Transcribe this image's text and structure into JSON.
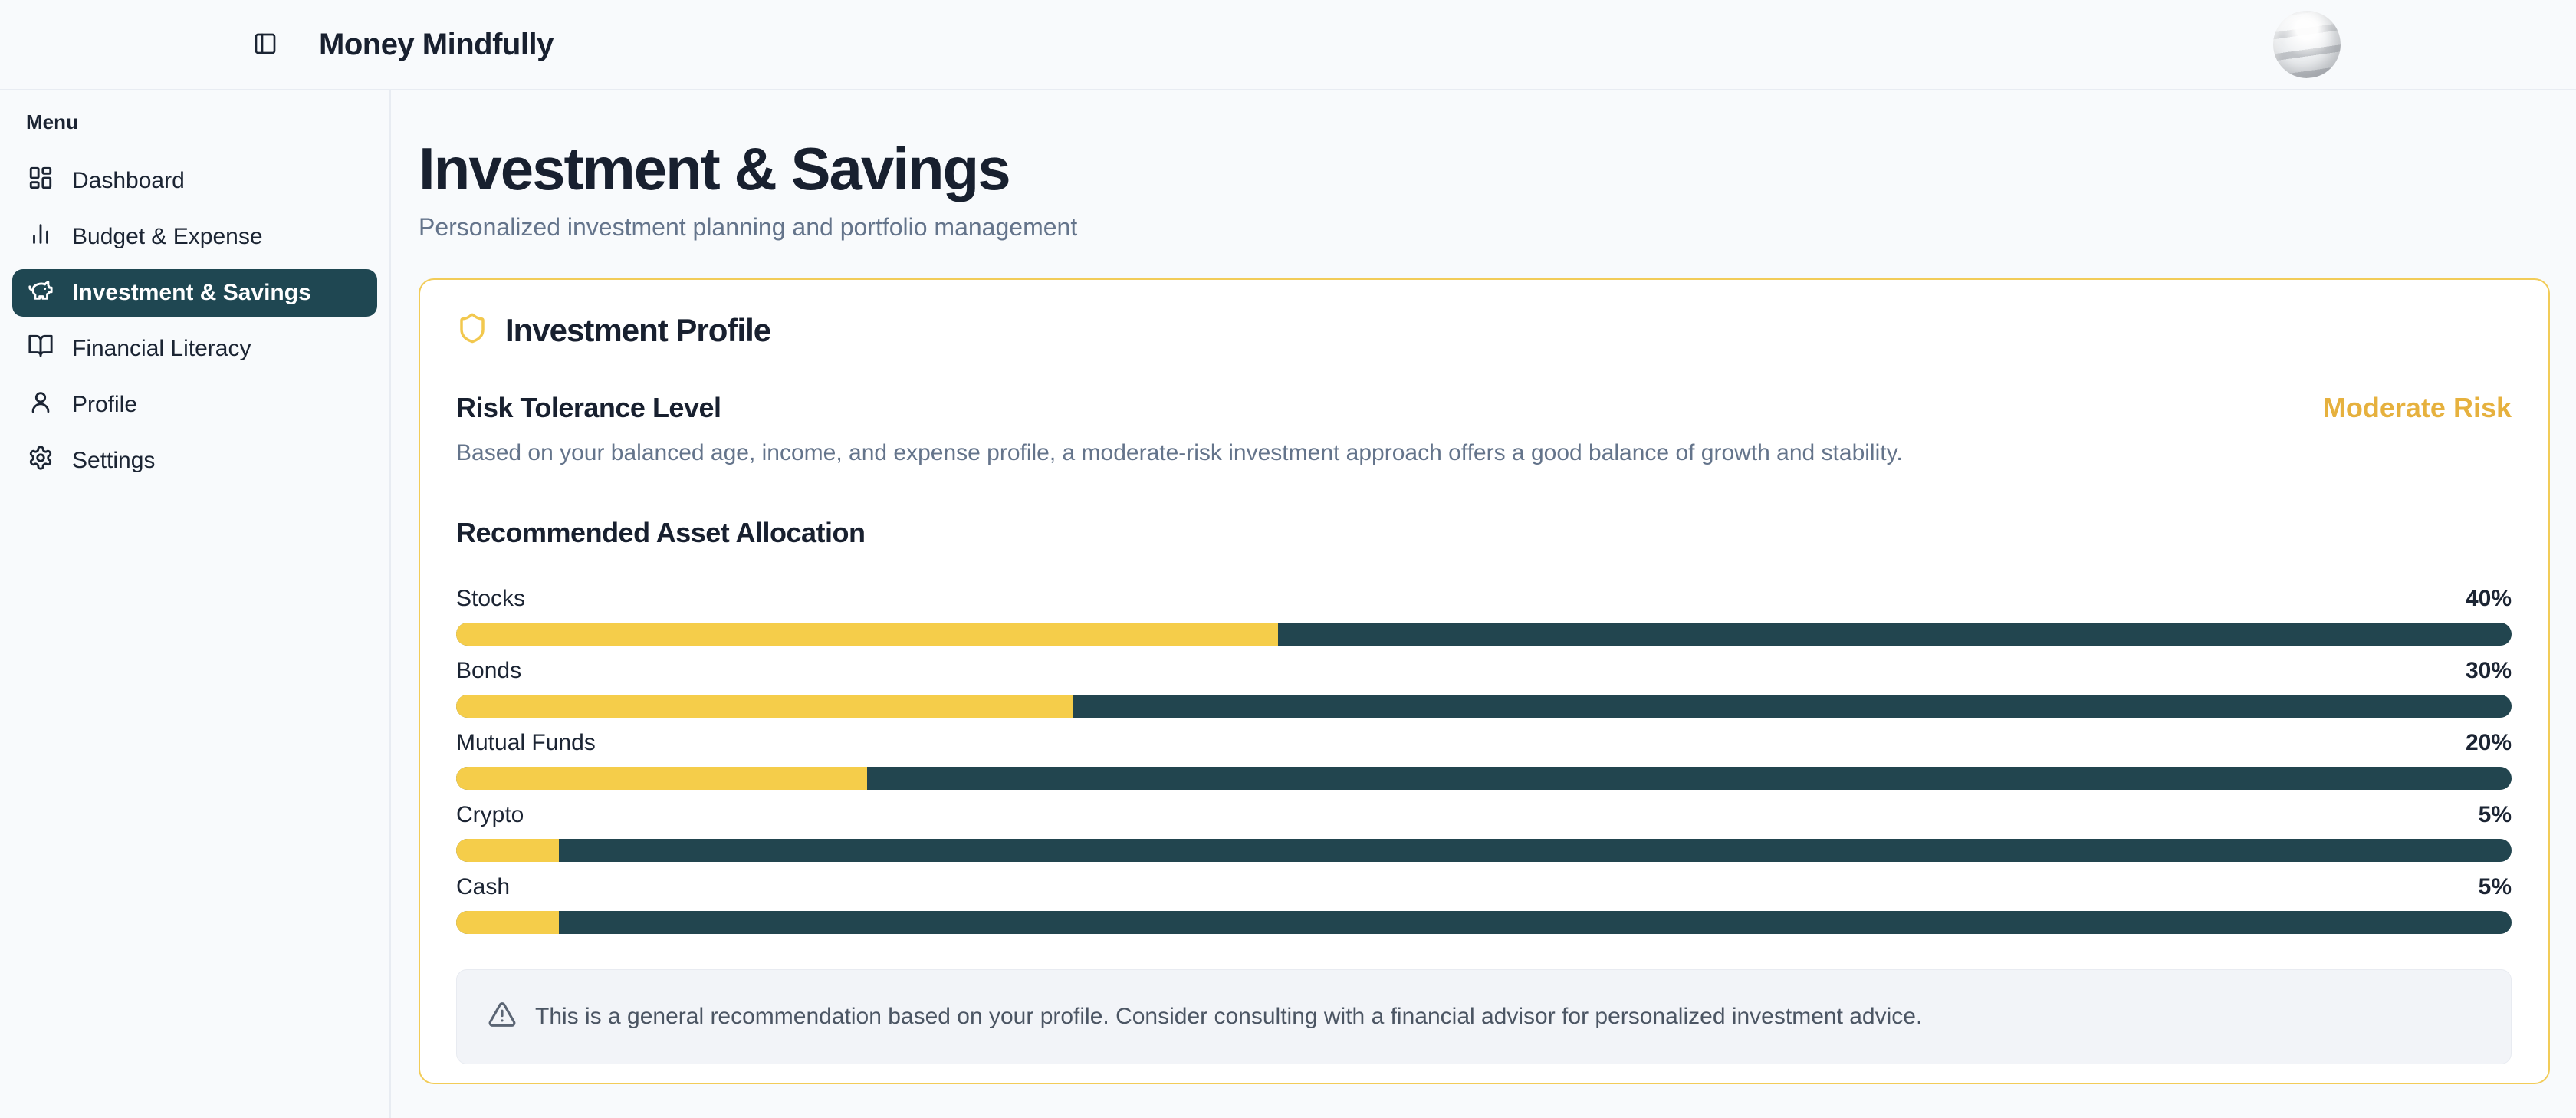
{
  "header": {
    "app_title": "Money Mindfully"
  },
  "sidebar": {
    "menu_label": "Menu",
    "items": [
      {
        "label": "Dashboard",
        "icon": "dashboard-icon",
        "active": false
      },
      {
        "label": "Budget & Expense",
        "icon": "bar-chart-icon",
        "active": false
      },
      {
        "label": "Investment & Savings",
        "icon": "piggy-bank-icon",
        "active": true
      },
      {
        "label": "Financial Literacy",
        "icon": "book-open-icon",
        "active": false
      },
      {
        "label": "Profile",
        "icon": "user-icon",
        "active": false
      },
      {
        "label": "Settings",
        "icon": "gear-icon",
        "active": false
      }
    ]
  },
  "page": {
    "title": "Investment & Savings",
    "subtitle": "Personalized investment planning and portfolio management"
  },
  "profile_card": {
    "title": "Investment Profile",
    "risk": {
      "heading": "Risk Tolerance Level",
      "level": "Moderate Risk",
      "description": "Based on your balanced age, income, and expense profile, a moderate-risk investment approach offers a good balance of growth and stability."
    },
    "allocation": {
      "heading": "Recommended Asset Allocation",
      "items": [
        {
          "label": "Stocks",
          "percent": 40,
          "percent_label": "40%"
        },
        {
          "label": "Bonds",
          "percent": 30,
          "percent_label": "30%"
        },
        {
          "label": "Mutual Funds",
          "percent": 20,
          "percent_label": "20%"
        },
        {
          "label": "Crypto",
          "percent": 5,
          "percent_label": "5%"
        },
        {
          "label": "Cash",
          "percent": 5,
          "percent_label": "5%"
        }
      ]
    },
    "disclaimer": "This is a general recommendation based on your profile. Consider consulting with a financial advisor for personalized investment advice."
  },
  "colors": {
    "accent_yellow": "#f5cd4a",
    "accent_gold_text": "#e6b13e",
    "card_border": "#f2cc58",
    "bar_track": "#22454f",
    "sidebar_active_bg": "#1f4752",
    "page_bg": "#f8fafc",
    "text_dark": "#18202f",
    "text_muted": "#64748b"
  }
}
